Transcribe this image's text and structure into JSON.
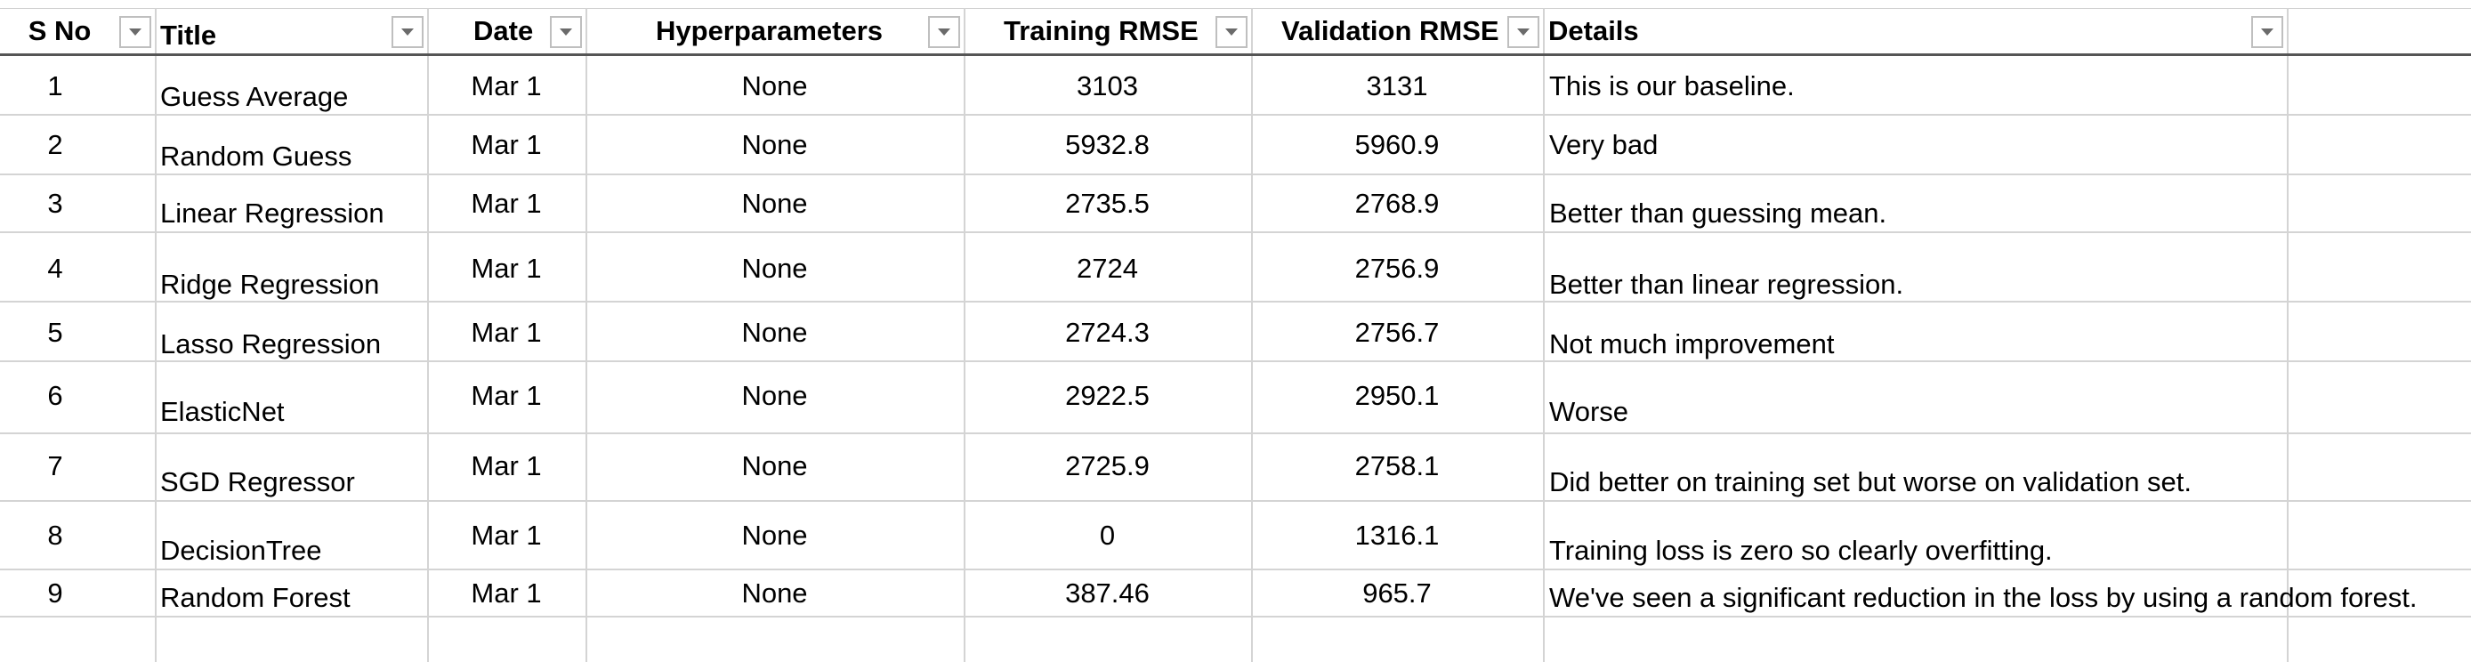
{
  "table": {
    "headers": [
      {
        "key": "sno",
        "label": "S No"
      },
      {
        "key": "title",
        "label": "Title"
      },
      {
        "key": "date",
        "label": "Date"
      },
      {
        "key": "hyper",
        "label": "Hyperparameters"
      },
      {
        "key": "train",
        "label": "Training RMSE"
      },
      {
        "key": "valid",
        "label": "Validation RMSE"
      },
      {
        "key": "details",
        "label": "Details"
      }
    ],
    "filter_icon": "dropdown-arrow-icon",
    "rows": [
      {
        "sno": "1",
        "title": "Guess Average",
        "date": "Mar 1",
        "hyper": "None",
        "train": "3103",
        "valid": "3131",
        "details": "This is our baseline."
      },
      {
        "sno": "2",
        "title": "Random Guess",
        "date": "Mar 1",
        "hyper": "None",
        "train": "5932.8",
        "valid": "5960.9",
        "details": "Very bad"
      },
      {
        "sno": "3",
        "title": "Linear Regression",
        "date": "Mar 1",
        "hyper": "None",
        "train": "2735.5",
        "valid": "2768.9",
        "details": "Better than guessing mean."
      },
      {
        "sno": "4",
        "title": "Ridge Regression",
        "date": "Mar 1",
        "hyper": "None",
        "train": "2724",
        "valid": "2756.9",
        "details": "Better than linear regression."
      },
      {
        "sno": "5",
        "title": "Lasso Regression",
        "date": "Mar 1",
        "hyper": "None",
        "train": "2724.3",
        "valid": "2756.7",
        "details": "Not much improvement"
      },
      {
        "sno": "6",
        "title": "ElasticNet",
        "date": "Mar 1",
        "hyper": "None",
        "train": "2922.5",
        "valid": "2950.1",
        "details": "Worse"
      },
      {
        "sno": "7",
        "title": "SGD Regressor",
        "date": "Mar 1",
        "hyper": "None",
        "train": "2725.9",
        "valid": "2758.1",
        "details": "Did better on training set but worse on validation set."
      },
      {
        "sno": "8",
        "title": "DecisionTree",
        "date": "Mar 1",
        "hyper": "None",
        "train": "0",
        "valid": "1316.1",
        "details": "Training loss is zero so clearly overfitting."
      },
      {
        "sno": "9",
        "title": "Random Forest",
        "date": "Mar 1",
        "hyper": "None",
        "train": "387.46",
        "valid": "965.7",
        "details": "We've seen a significant reduction in the loss by using a random forest."
      }
    ]
  },
  "colors": {
    "gridline": "#d4d4d4",
    "header_border": "#555555",
    "filter_border": "#bfbfbf"
  }
}
